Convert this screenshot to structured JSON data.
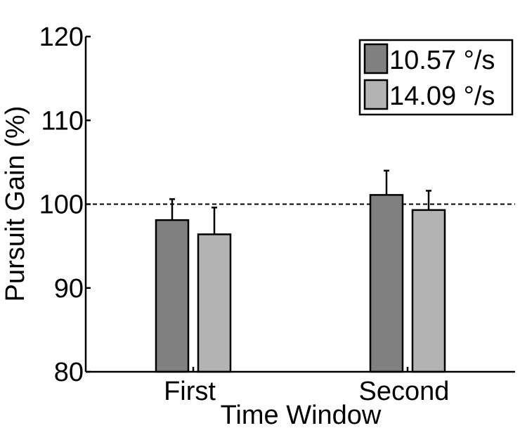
{
  "chart_data": {
    "type": "bar",
    "xlabel": "Time Window",
    "ylabel": "Pursuit Gain (%)",
    "categories": [
      "First",
      "Second"
    ],
    "ylim": [
      80,
      120
    ],
    "yticks": [
      "80",
      "90",
      "100",
      "110",
      "120"
    ],
    "reference_line": 100,
    "legend_position": "top-right",
    "grid": false,
    "series": [
      {
        "name": "10.57 °/s",
        "color": "#808080",
        "values": [
          98.1,
          101.1
        ],
        "errors": [
          2.5,
          2.9
        ]
      },
      {
        "name": "14.09 °/s",
        "color": "#b3b3b3",
        "values": [
          96.4,
          99.3
        ],
        "errors": [
          3.2,
          2.3
        ]
      }
    ]
  }
}
